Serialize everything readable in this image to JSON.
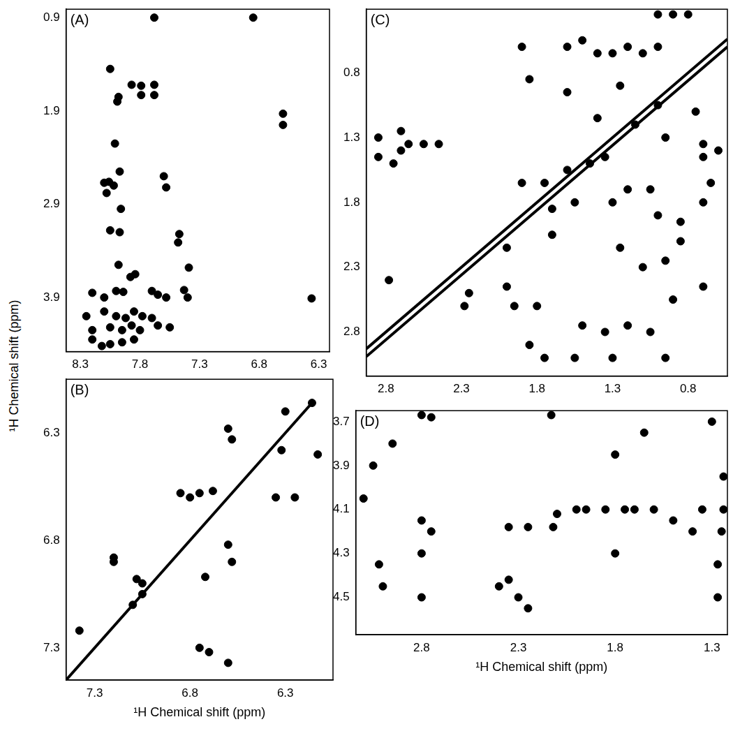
{
  "ylabel": "¹H Chemical shift (ppm)",
  "chart_data": [
    {
      "type": "scatter",
      "label": "(A)",
      "grid": false,
      "xlim": [
        8.42,
        6.21
      ],
      "xticks": [
        8.3,
        7.8,
        7.3,
        6.8,
        6.3
      ],
      "ylim": [
        4.48,
        0.81
      ],
      "yticks": [
        0.9,
        1.9,
        2.9,
        3.9
      ],
      "series": [
        {
          "type": "scatter",
          "color": "#000000",
          "marker": "circle",
          "x": [
            7.68,
            8.05,
            7.87,
            7.79,
            7.68,
            7.68,
            7.79,
            7.98,
            7.99,
            8.01,
            7.97,
            8.06,
            8.1,
            8.02,
            8.08,
            7.6,
            7.58,
            7.96,
            7.97,
            8.05,
            7.47,
            7.48,
            7.98,
            7.88,
            7.84,
            7.39,
            8.2,
            8.1,
            8.0,
            7.94,
            7.7,
            7.65,
            7.58,
            7.43,
            7.4,
            8.25,
            8.1,
            8.0,
            7.92,
            7.85,
            7.78,
            7.7,
            8.2,
            8.05,
            7.95,
            7.87,
            7.8,
            7.65,
            7.55,
            8.2,
            8.05,
            7.95,
            7.85,
            8.12,
            6.36,
            6.6,
            6.6,
            6.85
          ],
          "values": [
            0.9,
            1.45,
            1.62,
            1.63,
            1.62,
            1.73,
            1.73,
            1.75,
            1.8,
            2.25,
            2.55,
            2.66,
            2.67,
            2.7,
            2.78,
            2.6,
            2.72,
            2.95,
            3.2,
            3.18,
            3.22,
            3.31,
            3.55,
            3.68,
            3.65,
            3.58,
            3.85,
            3.9,
            3.83,
            3.84,
            3.83,
            3.87,
            3.9,
            3.82,
            3.9,
            4.1,
            4.05,
            4.1,
            4.12,
            4.05,
            4.1,
            4.12,
            4.25,
            4.22,
            4.25,
            4.2,
            4.25,
            4.2,
            4.22,
            4.35,
            4.4,
            4.38,
            4.35,
            4.42,
            3.91,
            1.93,
            2.05,
            0.9
          ]
        }
      ]
    },
    {
      "type": "scatter",
      "label": "(B)",
      "grid": false,
      "x_label": "¹H Chemical shift (ppm)",
      "xlim": [
        7.45,
        6.05
      ],
      "xticks": [
        7.3,
        6.8,
        6.3
      ],
      "ylim": [
        7.45,
        6.05
      ],
      "yticks": [
        6.3,
        6.8,
        7.3
      ],
      "series": [
        {
          "type": "line",
          "color": "#000000",
          "x": [
            7.45,
            6.15
          ],
          "values": [
            7.45,
            6.15
          ]
        },
        {
          "type": "scatter",
          "color": "#000000",
          "marker": "circle",
          "x": [
            6.16,
            6.3,
            6.32,
            6.13,
            6.58,
            6.6,
            6.85,
            6.8,
            6.75,
            6.68,
            6.35,
            6.25,
            7.2,
            7.08,
            7.05,
            6.6,
            6.58,
            6.72,
            7.05,
            7.1,
            6.75,
            6.7,
            6.6,
            7.38,
            7.2
          ],
          "values": [
            6.16,
            6.2,
            6.38,
            6.4,
            6.33,
            6.28,
            6.58,
            6.6,
            6.58,
            6.57,
            6.6,
            6.6,
            6.9,
            6.98,
            7.0,
            6.82,
            6.9,
            6.97,
            7.05,
            7.1,
            7.3,
            7.32,
            7.37,
            7.22,
            6.88
          ]
        }
      ]
    },
    {
      "type": "scatter",
      "label": "(C)",
      "grid": false,
      "xlim": [
        2.93,
        0.54
      ],
      "xticks": [
        2.8,
        2.3,
        1.8,
        1.3,
        0.8
      ],
      "ylim": [
        3.14,
        0.31
      ],
      "yticks": [
        0.8,
        1.3,
        1.8,
        2.3,
        2.8
      ],
      "series": [
        {
          "type": "line",
          "color": "#000000",
          "x": [
            2.93,
            0.54
          ],
          "values": [
            2.93,
            0.54
          ]
        },
        {
          "type": "line",
          "color": "#000000",
          "x": [
            2.93,
            0.54
          ],
          "values": [
            2.99,
            0.6
          ]
        },
        {
          "type": "scatter",
          "color": "#000000",
          "marker": "circle",
          "x": [
            2.85,
            2.85,
            2.7,
            2.7,
            2.65,
            2.55,
            2.45,
            2.75,
            2.78,
            2.25,
            2.28,
            2.0,
            1.95,
            1.6,
            1.5,
            1.4,
            1.3,
            1.2,
            1.1,
            1.0,
            1.0,
            0.9,
            0.8,
            1.9,
            1.85,
            1.6,
            1.4,
            1.25,
            1.15,
            1.0,
            0.95,
            0.75,
            0.7,
            0.7,
            0.6,
            1.9,
            1.75,
            1.6,
            1.45,
            1.35,
            1.7,
            1.55,
            1.3,
            1.2,
            1.05,
            1.0,
            0.85,
            0.7,
            0.65,
            2.0,
            1.7,
            1.25,
            1.1,
            0.95,
            0.85,
            0.7,
            1.8,
            1.5,
            1.35,
            1.2,
            1.05,
            0.9,
            1.75,
            1.55,
            1.3,
            0.95,
            1.85
          ],
          "values": [
            1.3,
            1.45,
            1.25,
            1.4,
            1.35,
            1.35,
            1.35,
            1.5,
            2.4,
            2.5,
            2.6,
            2.45,
            2.6,
            0.6,
            0.55,
            0.65,
            0.65,
            0.6,
            0.65,
            0.6,
            0.35,
            0.35,
            0.35,
            0.6,
            0.85,
            0.95,
            1.15,
            0.9,
            1.2,
            1.05,
            1.3,
            1.1,
            1.35,
            1.45,
            1.4,
            1.65,
            1.65,
            1.55,
            1.5,
            1.45,
            1.85,
            1.8,
            1.8,
            1.7,
            1.7,
            1.9,
            1.95,
            1.8,
            1.65,
            2.15,
            2.05,
            2.15,
            2.3,
            2.25,
            2.1,
            2.45,
            2.6,
            2.75,
            2.8,
            2.75,
            2.8,
            2.55,
            3.0,
            3.0,
            3.0,
            3.0,
            2.9
          ]
        }
      ]
    },
    {
      "type": "scatter",
      "label": "(D)",
      "grid": false,
      "x_label": "¹H Chemical shift (ppm)",
      "xlim": [
        3.14,
        1.22
      ],
      "xticks": [
        2.8,
        2.3,
        1.8,
        1.3
      ],
      "ylim": [
        4.67,
        3.65
      ],
      "yticks": [
        3.7,
        3.9,
        4.1,
        4.3,
        4.5
      ],
      "series": [
        {
          "type": "scatter",
          "color": "#000000",
          "marker": "circle",
          "x": [
            3.1,
            3.05,
            3.02,
            3.0,
            2.95,
            2.8,
            2.8,
            2.8,
            2.8,
            2.75,
            2.4,
            2.35,
            2.3,
            2.25,
            2.35,
            2.25,
            2.12,
            2.1,
            2.13,
            2.0,
            1.95,
            1.8,
            1.85,
            1.8,
            1.75,
            1.7,
            1.6,
            1.5,
            1.65,
            1.4,
            1.35,
            1.27,
            1.27,
            1.24,
            1.24,
            1.25,
            1.3,
            2.75
          ],
          "values": [
            4.05,
            3.9,
            4.35,
            4.45,
            3.8,
            3.67,
            4.15,
            4.3,
            4.5,
            4.2,
            4.45,
            4.42,
            4.5,
            4.55,
            4.18,
            4.18,
            4.18,
            4.12,
            3.67,
            4.1,
            4.1,
            4.3,
            4.1,
            3.85,
            4.1,
            4.1,
            4.1,
            4.15,
            3.75,
            4.2,
            4.1,
            4.35,
            4.5,
            3.95,
            4.1,
            4.2,
            3.7,
            3.68
          ]
        }
      ]
    }
  ]
}
